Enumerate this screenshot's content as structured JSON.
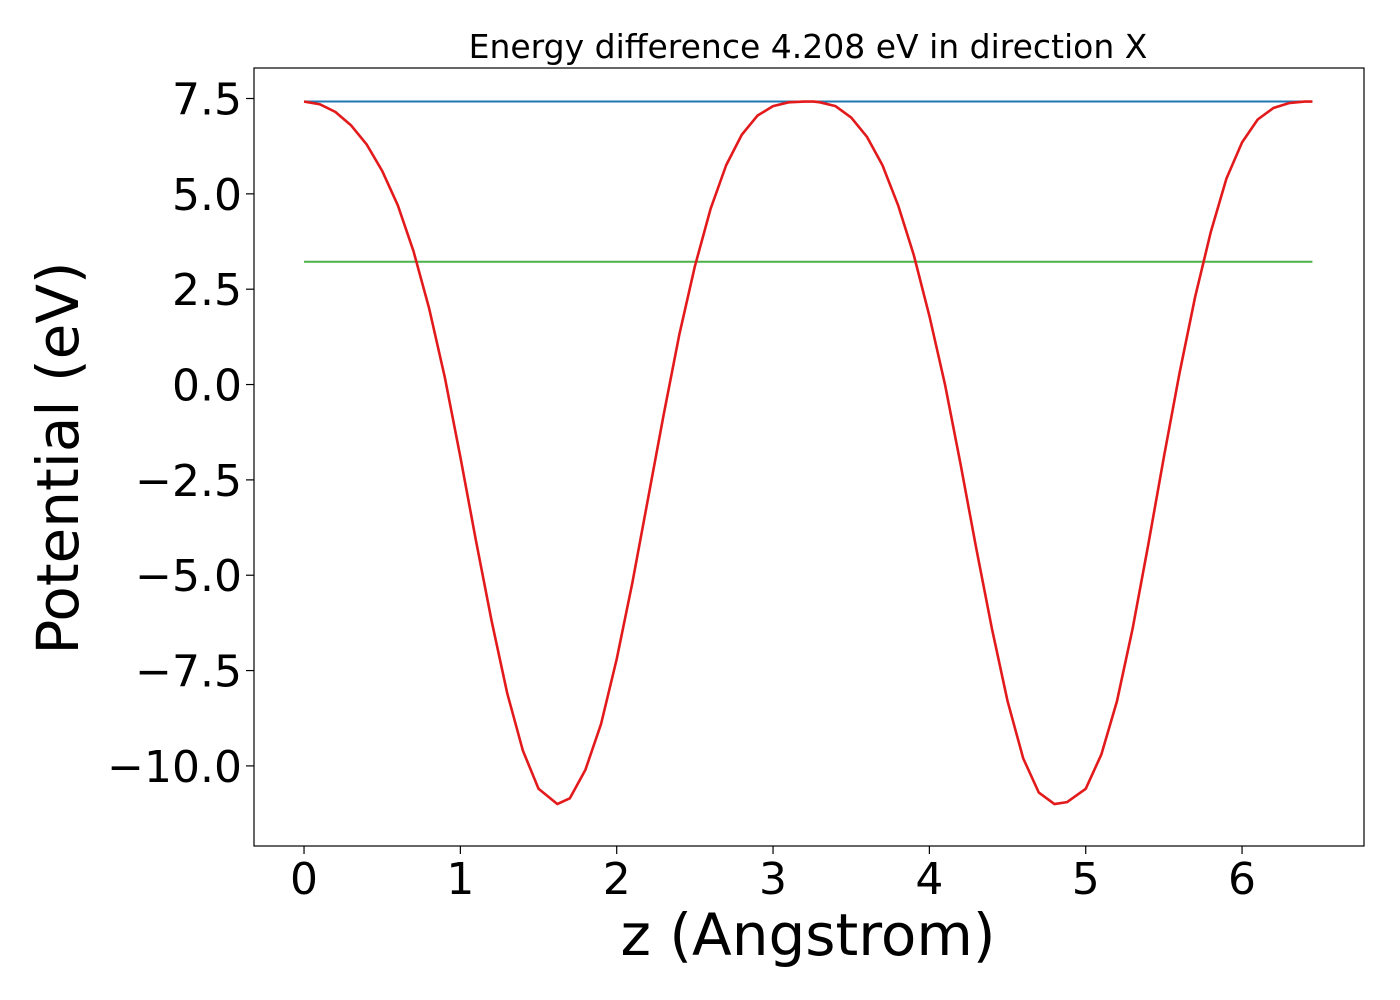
{
  "chart_data": {
    "type": "line",
    "title": "Energy difference 4.208 eV in direction X",
    "xlabel": "z (Angstrom)",
    "ylabel": "Potential (eV)",
    "xlim": [
      -0.32,
      6.78
    ],
    "ylim": [
      -12.1,
      8.3
    ],
    "xticks": [
      0,
      1,
      2,
      3,
      4,
      5,
      6
    ],
    "xtick_labels": [
      "0",
      "1",
      "2",
      "3",
      "4",
      "5",
      "6"
    ],
    "yticks": [
      7.5,
      5.0,
      2.5,
      0.0,
      -2.5,
      -5.0,
      -7.5,
      -10.0
    ],
    "ytick_labels": [
      "7.5",
      "5.0",
      "2.5",
      "0.0",
      "−2.5",
      "−5.0",
      "−7.5",
      "−10.0"
    ],
    "grid": false,
    "legend": "none",
    "series": [
      {
        "color": "#e31a1c",
        "x": [
          0.0,
          0.1,
          0.2,
          0.3,
          0.4,
          0.5,
          0.6,
          0.7,
          0.8,
          0.9,
          1.0,
          1.1,
          1.2,
          1.3,
          1.4,
          1.5,
          1.62,
          1.7,
          1.8,
          1.9,
          2.0,
          2.1,
          2.2,
          2.3,
          2.4,
          2.5,
          2.6,
          2.7,
          2.8,
          2.9,
          3.0,
          3.1,
          3.2,
          3.26,
          3.3,
          3.4,
          3.5,
          3.6,
          3.7,
          3.8,
          3.9,
          4.0,
          4.1,
          4.2,
          4.3,
          4.4,
          4.5,
          4.6,
          4.7,
          4.8,
          4.88,
          5.0,
          5.1,
          5.2,
          5.3,
          5.4,
          5.5,
          5.6,
          5.7,
          5.8,
          5.9,
          6.0,
          6.1,
          6.2,
          6.3,
          6.4,
          6.45
        ],
        "y": [
          7.42,
          7.35,
          7.15,
          6.8,
          6.3,
          5.6,
          4.7,
          3.5,
          2.0,
          0.2,
          -1.9,
          -4.1,
          -6.2,
          -8.1,
          -9.6,
          -10.6,
          -11.0,
          -10.85,
          -10.1,
          -8.9,
          -7.2,
          -5.2,
          -3.0,
          -0.8,
          1.3,
          3.1,
          4.6,
          5.75,
          6.55,
          7.05,
          7.3,
          7.4,
          7.42,
          7.42,
          7.4,
          7.3,
          7.0,
          6.5,
          5.75,
          4.7,
          3.4,
          1.8,
          0.0,
          -2.1,
          -4.3,
          -6.4,
          -8.3,
          -9.8,
          -10.7,
          -11.0,
          -10.95,
          -10.6,
          -9.7,
          -8.3,
          -6.4,
          -4.2,
          -1.9,
          0.3,
          2.3,
          4.0,
          5.4,
          6.35,
          6.95,
          7.25,
          7.38,
          7.42,
          7.42
        ]
      },
      {
        "color": "#1f77b4",
        "x": [
          0.0,
          6.45
        ],
        "y": [
          7.42,
          7.42
        ]
      },
      {
        "color": "#4daf4a",
        "x": [
          0.0,
          6.45
        ],
        "y": [
          3.22,
          3.22
        ]
      }
    ]
  }
}
